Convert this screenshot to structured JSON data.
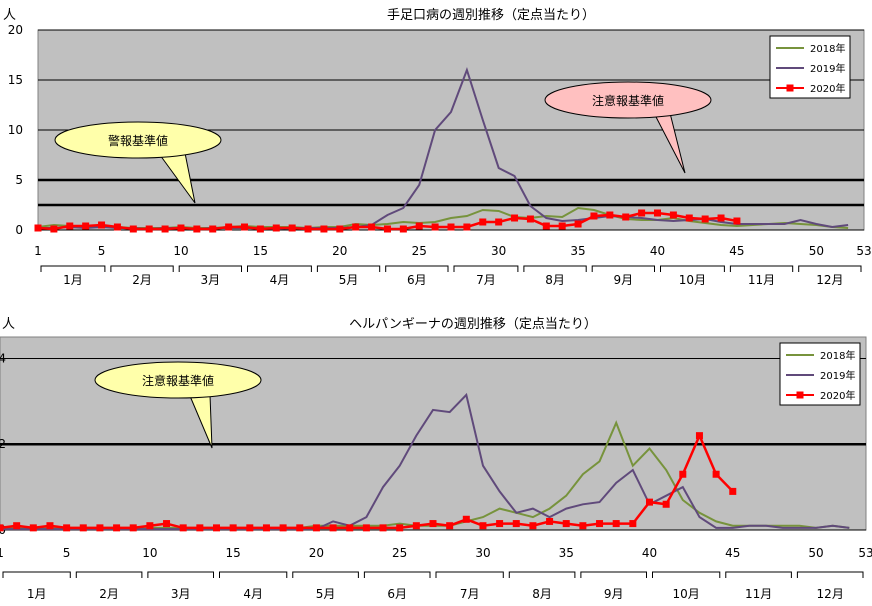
{
  "chart_data": [
    {
      "type": "line",
      "title": "手足口病の週別推移（定点当たり）",
      "ylabel": "人",
      "ylim": [
        0,
        20
      ],
      "yticks": [
        0,
        5,
        10,
        15,
        20
      ],
      "xlim": [
        1,
        53
      ],
      "xticks": [
        1,
        5,
        10,
        15,
        20,
        25,
        30,
        35,
        40,
        45,
        50,
        53
      ],
      "months": [
        "1月",
        "2月",
        "3月",
        "4月",
        "5月",
        "6月",
        "7月",
        "8月",
        "9月",
        "10月",
        "11月",
        "12月"
      ],
      "grid": true,
      "legend": "top-right",
      "thresholds": [
        {
          "label": "警報基準値",
          "value": 5
        },
        {
          "label": "注意報基準値",
          "value": 2.5
        }
      ],
      "series": [
        {
          "name": "2018年",
          "color": "#77933c",
          "marker": false,
          "x": [
            1,
            2,
            3,
            4,
            5,
            6,
            7,
            8,
            9,
            10,
            11,
            12,
            13,
            14,
            15,
            16,
            17,
            18,
            19,
            20,
            21,
            22,
            23,
            24,
            25,
            26,
            27,
            28,
            29,
            30,
            31,
            32,
            33,
            34,
            35,
            36,
            37,
            38,
            39,
            40,
            41,
            42,
            43,
            44,
            45,
            46,
            47,
            48,
            49,
            50,
            51,
            52
          ],
          "values": [
            0.3,
            0.5,
            0.4,
            0.3,
            0.4,
            0.3,
            0.2,
            0.2,
            0.2,
            0.3,
            0.2,
            0.2,
            0.3,
            0.4,
            0.3,
            0.3,
            0.3,
            0.2,
            0.3,
            0.3,
            0.6,
            0.5,
            0.6,
            0.8,
            0.7,
            0.8,
            1.2,
            1.4,
            2.0,
            1.9,
            1.3,
            1.2,
            1.4,
            1.3,
            2.2,
            2.0,
            1.5,
            1.1,
            1.0,
            1.0,
            1.2,
            0.9,
            0.7,
            0.5,
            0.4,
            0.5,
            0.6,
            0.7,
            0.6,
            0.5,
            0.3,
            0.2
          ]
        },
        {
          "name": "2019年",
          "color": "#604a7b",
          "marker": false,
          "x": [
            1,
            2,
            3,
            4,
            5,
            6,
            7,
            8,
            9,
            10,
            11,
            12,
            13,
            14,
            15,
            16,
            17,
            18,
            19,
            20,
            21,
            22,
            23,
            24,
            25,
            26,
            27,
            28,
            29,
            30,
            31,
            32,
            33,
            34,
            35,
            36,
            37,
            38,
            39,
            40,
            41,
            42,
            43,
            44,
            45,
            46,
            47,
            48,
            49,
            50,
            51,
            52
          ],
          "values": [
            0.2,
            0.2,
            0.3,
            0.2,
            0.3,
            0.2,
            0.2,
            0.1,
            0.2,
            0.2,
            0.1,
            0.2,
            0.2,
            0.2,
            0.2,
            0.1,
            0.2,
            0.2,
            0.2,
            0.2,
            0.3,
            0.5,
            1.5,
            2.2,
            4.5,
            10.0,
            11.8,
            16.0,
            11.0,
            6.2,
            5.4,
            2.4,
            1.2,
            0.9,
            1.0,
            1.2,
            1.4,
            1.3,
            1.2,
            1.0,
            0.9,
            1.0,
            1.1,
            0.8,
            0.6,
            0.6,
            0.6,
            0.6,
            1.0,
            0.6,
            0.3,
            0.5
          ]
        },
        {
          "name": "2020年",
          "color": "#ff0000",
          "marker": true,
          "x": [
            1,
            2,
            3,
            4,
            5,
            6,
            7,
            8,
            9,
            10,
            11,
            12,
            13,
            14,
            15,
            16,
            17,
            18,
            19,
            20,
            21,
            22,
            23,
            24,
            25,
            26,
            27,
            28,
            29,
            30,
            31,
            32,
            33,
            34,
            35,
            36,
            37,
            38,
            39,
            40,
            41,
            42,
            43,
            44,
            45
          ],
          "values": [
            0.2,
            0.1,
            0.4,
            0.4,
            0.5,
            0.3,
            0.1,
            0.1,
            0.1,
            0.2,
            0.1,
            0.1,
            0.3,
            0.3,
            0.1,
            0.2,
            0.2,
            0.1,
            0.1,
            0.1,
            0.3,
            0.3,
            0.1,
            0.1,
            0.4,
            0.3,
            0.3,
            0.3,
            0.8,
            0.8,
            1.2,
            1.1,
            0.4,
            0.4,
            0.6,
            1.4,
            1.5,
            1.3,
            1.7,
            1.7,
            1.5,
            1.2,
            1.1,
            1.2,
            0.9
          ]
        }
      ]
    },
    {
      "type": "line",
      "title": "ヘルパンギーナの週別推移（定点当たり）",
      "ylabel": "人",
      "ylim": [
        0,
        4.5
      ],
      "yticks": [
        0,
        2,
        4
      ],
      "ytick_labels": [
        "0",
        "2",
        "4"
      ],
      "xlim": [
        1,
        53
      ],
      "xticks": [
        1,
        5,
        10,
        15,
        20,
        25,
        30,
        35,
        40,
        45,
        50,
        53
      ],
      "months": [
        "1月",
        "2月",
        "3月",
        "4月",
        "5月",
        "6月",
        "7月",
        "8月",
        "9月",
        "10月",
        "11月",
        "12月"
      ],
      "grid": true,
      "legend": "top-right",
      "thresholds": [
        {
          "label": "注意報基準値",
          "value": 2
        }
      ],
      "series": [
        {
          "name": "2018年",
          "color": "#77933c",
          "marker": false,
          "x": [
            1,
            2,
            3,
            4,
            5,
            6,
            7,
            8,
            9,
            10,
            11,
            12,
            13,
            14,
            15,
            16,
            17,
            18,
            19,
            20,
            21,
            22,
            23,
            24,
            25,
            26,
            27,
            28,
            29,
            30,
            31,
            32,
            33,
            34,
            35,
            36,
            37,
            38,
            39,
            40,
            41,
            42,
            43,
            44,
            45,
            46,
            47,
            48,
            49,
            50,
            51,
            52
          ],
          "values": [
            0.05,
            0.05,
            0.05,
            0.05,
            0.05,
            0.05,
            0.05,
            0.05,
            0.05,
            0.05,
            0.05,
            0.05,
            0.05,
            0.05,
            0.05,
            0.05,
            0.05,
            0.05,
            0.05,
            0.1,
            0.1,
            0.1,
            0.1,
            0.1,
            0.15,
            0.1,
            0.1,
            0.1,
            0.2,
            0.3,
            0.5,
            0.4,
            0.3,
            0.5,
            0.8,
            1.3,
            1.6,
            2.5,
            1.5,
            1.9,
            1.4,
            0.7,
            0.4,
            0.2,
            0.1,
            0.1,
            0.1,
            0.1,
            0.1,
            0.05,
            0.1,
            0.05
          ]
        },
        {
          "name": "2019年",
          "color": "#604a7b",
          "marker": false,
          "x": [
            1,
            2,
            3,
            4,
            5,
            6,
            7,
            8,
            9,
            10,
            11,
            12,
            13,
            14,
            15,
            16,
            17,
            18,
            19,
            20,
            21,
            22,
            23,
            24,
            25,
            26,
            27,
            28,
            29,
            30,
            31,
            32,
            33,
            34,
            35,
            36,
            37,
            38,
            39,
            40,
            41,
            42,
            43,
            44,
            45,
            46,
            47,
            48,
            49,
            50,
            51,
            52
          ],
          "values": [
            0.02,
            0.02,
            0.02,
            0.02,
            0.02,
            0.02,
            0.02,
            0.02,
            0.02,
            0.02,
            0.02,
            0.02,
            0.02,
            0.02,
            0.02,
            0.02,
            0.02,
            0.02,
            0.02,
            0.02,
            0.2,
            0.1,
            0.3,
            1.0,
            1.5,
            2.2,
            2.8,
            2.75,
            3.15,
            1.5,
            0.9,
            0.4,
            0.5,
            0.3,
            0.5,
            0.6,
            0.65,
            1.1,
            1.4,
            0.6,
            0.8,
            1.0,
            0.3,
            0.05,
            0.05,
            0.1,
            0.1,
            0.05,
            0.05,
            0.05,
            0.1,
            0.05
          ]
        },
        {
          "name": "2020年",
          "color": "#ff0000",
          "marker": true,
          "x": [
            1,
            2,
            3,
            4,
            5,
            6,
            7,
            8,
            9,
            10,
            11,
            12,
            13,
            14,
            15,
            16,
            17,
            18,
            19,
            20,
            21,
            22,
            23,
            24,
            25,
            26,
            27,
            28,
            29,
            30,
            31,
            32,
            33,
            34,
            35,
            36,
            37,
            38,
            39,
            40,
            41,
            42,
            43,
            44,
            45
          ],
          "values": [
            0.05,
            0.1,
            0.05,
            0.1,
            0.05,
            0.05,
            0.05,
            0.05,
            0.05,
            0.1,
            0.15,
            0.05,
            0.05,
            0.05,
            0.05,
            0.05,
            0.05,
            0.05,
            0.05,
            0.05,
            0.05,
            0.05,
            0.05,
            0.05,
            0.05,
            0.1,
            0.15,
            0.1,
            0.25,
            0.1,
            0.15,
            0.15,
            0.1,
            0.2,
            0.15,
            0.1,
            0.15,
            0.15,
            0.15,
            0.65,
            0.6,
            1.3,
            2.2,
            1.3,
            0.9
          ]
        }
      ]
    }
  ]
}
